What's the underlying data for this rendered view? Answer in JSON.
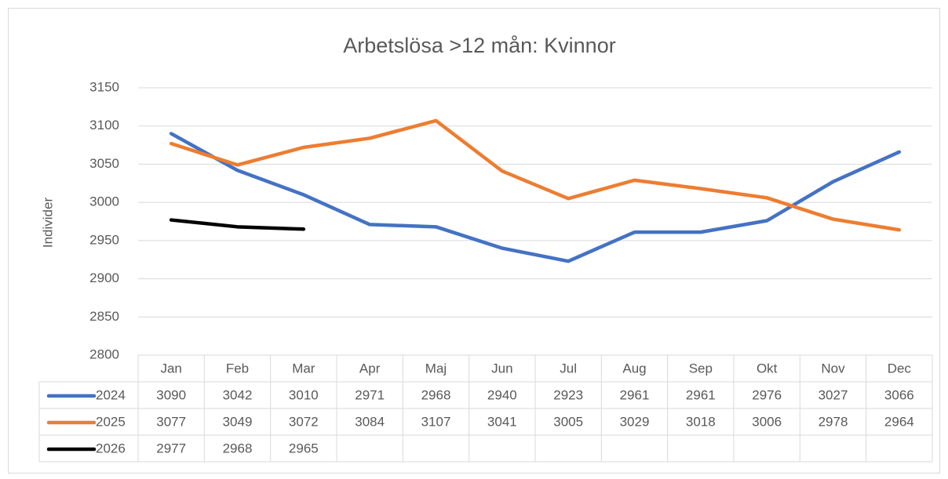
{
  "chart_data": {
    "type": "line",
    "title": "Arbetslösa >12 mån: Kvinnor",
    "y_label": "Individer",
    "categories": [
      "Jan",
      "Feb",
      "Mar",
      "Apr",
      "Maj",
      "Jun",
      "Jul",
      "Aug",
      "Sep",
      "Okt",
      "Nov",
      "Dec"
    ],
    "series": [
      {
        "name": "2024",
        "color": "#4472c4",
        "values": [
          3090,
          3042,
          3010,
          2971,
          2968,
          2940,
          2923,
          2961,
          2961,
          2976,
          3027,
          3066
        ]
      },
      {
        "name": "2025",
        "color": "#ed7d31",
        "values": [
          3077,
          3049,
          3072,
          3084,
          3107,
          3041,
          3005,
          3029,
          3018,
          3006,
          2978,
          2964
        ]
      },
      {
        "name": "2026",
        "color": "#000000",
        "values": [
          2977,
          2968,
          2965,
          null,
          null,
          null,
          null,
          null,
          null,
          null,
          null,
          null
        ]
      }
    ],
    "ylim": [
      2800,
      3150
    ],
    "yticks": [
      2800,
      2850,
      2900,
      2950,
      3000,
      3050,
      3100,
      3150
    ],
    "grid": true,
    "data_table": true
  }
}
